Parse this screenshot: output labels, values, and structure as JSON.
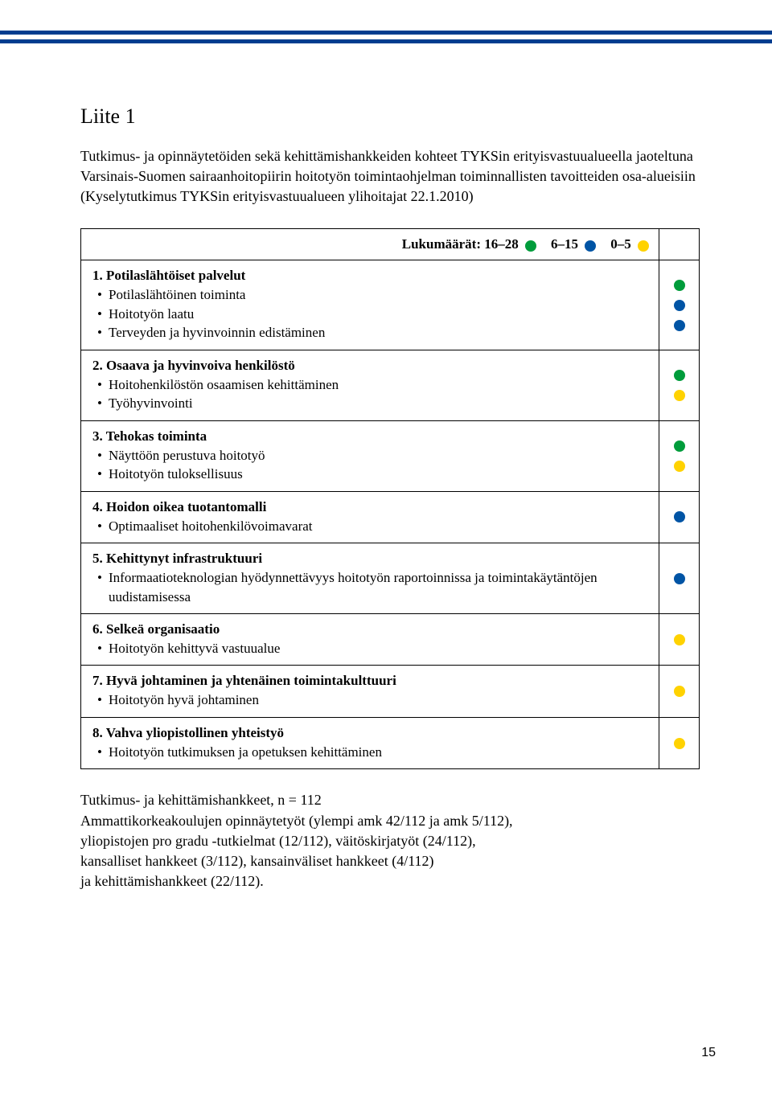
{
  "colors": {
    "header_bar": "#003d8f",
    "green": "#009c3b",
    "blue": "#0054a5",
    "yellow": "#ffd200"
  },
  "heading": "Liite 1",
  "intro": "Tutkimus- ja opinnäytetöiden sekä kehittämishankkeiden kohteet TYKSin erityisvastuualueella jaoteltuna Varsinais-Suomen sairaanhoitopiirin hoitotyön toimintaohjelman toiminnallisten tavoitteiden osa-alueisiin (Kyselytutkimus TYKSin erityisvastuualueen ylihoitajat 22.1.2010)",
  "legend": {
    "label": "Lukumäärät:",
    "items": [
      {
        "range": "16–28",
        "color": "green"
      },
      {
        "range": "6–15",
        "color": "blue"
      },
      {
        "range": "0–5",
        "color": "yellow"
      }
    ]
  },
  "rows": [
    {
      "title": "1. Potilaslähtöiset palvelut",
      "bullets": [
        "Potilaslähtöinen toiminta",
        "Hoitotyön laatu",
        "Terveyden ja hyvinvoinnin edistäminen"
      ],
      "dots": [
        "green",
        "blue",
        "blue"
      ]
    },
    {
      "title": "2. Osaava ja hyvinvoiva henkilöstö",
      "bullets": [
        "Hoitohenkilöstön osaamisen kehittäminen",
        "Työhyvinvointi"
      ],
      "dots": [
        "green",
        "yellow"
      ]
    },
    {
      "title": "3. Tehokas toiminta",
      "bullets": [
        "Näyttöön perustuva hoitotyö",
        "Hoitotyön tuloksellisuus"
      ],
      "dots": [
        "green",
        "yellow"
      ]
    },
    {
      "title": "4. Hoidon oikea tuotantomalli",
      "bullets": [
        "Optimaaliset hoitohenkilövoimavarat"
      ],
      "dots": [
        "blue"
      ]
    },
    {
      "title": "5. Kehittynyt infrastruktuuri",
      "bullets": [
        "Informaatioteknologian hyödynnettävyys hoitotyön raportoinnissa ja toimintakäytäntöjen uudistamisessa"
      ],
      "dots": [
        "blue"
      ]
    },
    {
      "title": "6. Selkeä organisaatio",
      "bullets": [
        "Hoitotyön kehittyvä vastuualue"
      ],
      "dots": [
        "yellow"
      ]
    },
    {
      "title": "7. Hyvä johtaminen ja yhtenäinen toimintakulttuuri",
      "bullets": [
        "Hoitotyön hyvä johtaminen"
      ],
      "dots": [
        "yellow"
      ]
    },
    {
      "title": "8. Vahva yliopistollinen yhteistyö",
      "bullets": [
        "Hoitotyön tutkimuksen ja opetuksen kehittäminen"
      ],
      "dots": [
        "yellow"
      ]
    }
  ],
  "footer_lines": [
    "Tutkimus- ja kehittämishankkeet, n = 112",
    "Ammattikorkeakoulujen opinnäytetyöt (ylempi amk 42/112 ja amk 5/112),",
    "yliopistojen pro gradu -tutkielmat (12/112), väitöskirjatyöt (24/112),",
    "kansalliset hankkeet (3/112), kansainväliset hankkeet (4/112)",
    "ja kehittämishankkeet (22/112)."
  ],
  "page_number": "15"
}
